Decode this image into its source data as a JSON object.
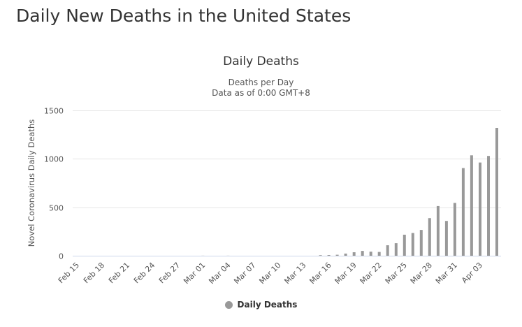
{
  "page": {
    "title": "Daily New Deaths in the United States"
  },
  "chart_data": {
    "type": "bar",
    "title": "Daily Deaths",
    "subtitle_lines": [
      "Deaths per Day",
      "Data as of 0:00 GMT+8"
    ],
    "ylabel": "Novel Coronavirus Daily Deaths",
    "xlabel": "",
    "ylim": [
      0,
      1500
    ],
    "yticks": [
      0,
      500,
      1000,
      1500
    ],
    "xtick_labels": [
      "Feb 15",
      "Feb 18",
      "Feb 21",
      "Feb 24",
      "Feb 27",
      "Mar 01",
      "Mar 04",
      "Mar 07",
      "Mar 10",
      "Mar 13",
      "Mar 16",
      "Mar 19",
      "Mar 22",
      "Mar 25",
      "Mar 28",
      "Mar 31",
      "Apr 03"
    ],
    "first_category": "Feb 15",
    "grid": true,
    "legend_position": "bottom-center",
    "series": [
      {
        "name": "Daily Deaths",
        "color": "#999999",
        "values": [
          0,
          0,
          0,
          0,
          0,
          0,
          0,
          0,
          0,
          0,
          0,
          0,
          0,
          0,
          0,
          1,
          0,
          0,
          1,
          0,
          0,
          0,
          0,
          0,
          0,
          0,
          0,
          0,
          0,
          6,
          7,
          10,
          22,
          36,
          50,
          42,
          39,
          108,
          129,
          217,
          235,
          266,
          388,
          513,
          359,
          545,
          905,
          1036,
          962,
          1030,
          1320
        ]
      }
    ]
  }
}
